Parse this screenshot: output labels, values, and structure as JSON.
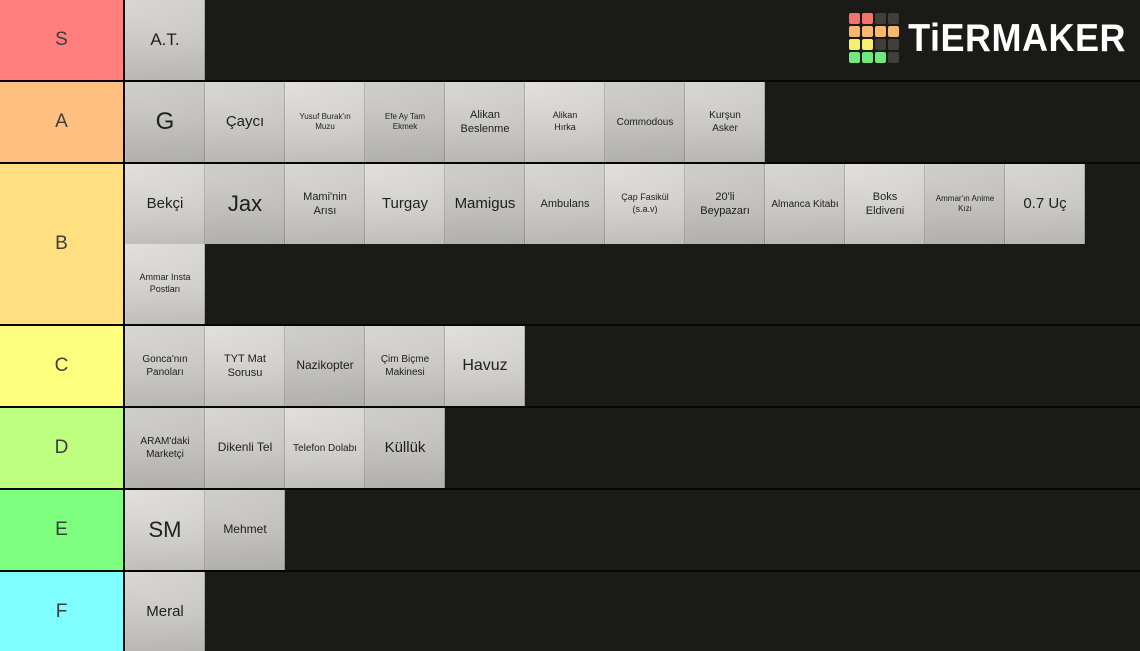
{
  "brand": {
    "name": "TiERMAKER",
    "grid_colors": [
      "#F4726E",
      "#F4726E",
      "#3F3F3C",
      "#3F3F3C",
      "#F8B76C",
      "#F8B76C",
      "#F8B76C",
      "#F8B76C",
      "#F6F06E",
      "#F6F06E",
      "#3F3F3C",
      "#3F3F3C",
      "#6FE87E",
      "#6FE87E",
      "#6FE87E",
      "#3F3F3C"
    ]
  },
  "palette": {
    "background": "#1A1A17",
    "tile": "#C7C5C2",
    "divider": "#050504"
  },
  "tiers": [
    {
      "label": "S",
      "color": "#FF7F7E",
      "items": [
        {
          "label": "A.T.",
          "fs": 17
        }
      ]
    },
    {
      "label": "A",
      "color": "#FFBF7F",
      "items": [
        {
          "label": "G",
          "fs": 24
        },
        {
          "label": "Çaycı",
          "fs": 15
        },
        {
          "label": "Yusuf Burak'ın\nMuzu",
          "fs": 8
        },
        {
          "label": "Efe Ay Tam\nEkmek",
          "fs": 8
        },
        {
          "label": "Alikan\nBeslenme",
          "fs": 11
        },
        {
          "label": "Alikan\nHırka",
          "fs": 9
        },
        {
          "label": "Commodous",
          "fs": 10
        },
        {
          "label": "Kurşun\nAsker",
          "fs": 10
        }
      ]
    },
    {
      "label": "B",
      "color": "#FFDF7F",
      "items": [
        {
          "label": "Bekçi",
          "fs": 15
        },
        {
          "label": "Jax",
          "fs": 22
        },
        {
          "label": "Mami'nin\nArısı",
          "fs": 11
        },
        {
          "label": "Turgay",
          "fs": 15
        },
        {
          "label": "Mamigus",
          "fs": 15
        },
        {
          "label": "Ambulans",
          "fs": 11
        },
        {
          "label": "Çap Fasikül\n(s.a.v)",
          "fs": 9
        },
        {
          "label": "20'li\nBeypazarı",
          "fs": 11
        },
        {
          "label": "Almanca Kitabı",
          "fs": 10
        },
        {
          "label": "Boks\nEldiveni",
          "fs": 11
        },
        {
          "label": "Ammar'ın Anime\nKızı",
          "fs": 8
        },
        {
          "label": "0.7 Uç",
          "fs": 15
        },
        {
          "label": "Ammar Insta\nPostları",
          "fs": 9
        }
      ]
    },
    {
      "label": "C",
      "color": "#FFFF7F",
      "items": [
        {
          "label": "Gonca'nın\nPanoları",
          "fs": 10
        },
        {
          "label": "TYT Mat\nSorusu",
          "fs": 11
        },
        {
          "label": "Nazikopter",
          "fs": 12
        },
        {
          "label": "Çim Biçme\nMakinesi",
          "fs": 10
        },
        {
          "label": "Havuz",
          "fs": 16
        }
      ]
    },
    {
      "label": "D",
      "color": "#BFFF7F",
      "items": [
        {
          "label": "ARAM'daki\nMarketçi",
          "fs": 10
        },
        {
          "label": "Dikenli Tel",
          "fs": 12
        },
        {
          "label": "Telefon Dolabı",
          "fs": 10
        },
        {
          "label": "Küllük",
          "fs": 15
        }
      ]
    },
    {
      "label": "E",
      "color": "#7FFF7F",
      "items": [
        {
          "label": "SM",
          "fs": 22
        },
        {
          "label": "Mehmet",
          "fs": 12
        }
      ]
    },
    {
      "label": "F",
      "color": "#7FFFFF",
      "items": [
        {
          "label": "Meral",
          "fs": 15
        }
      ]
    }
  ]
}
